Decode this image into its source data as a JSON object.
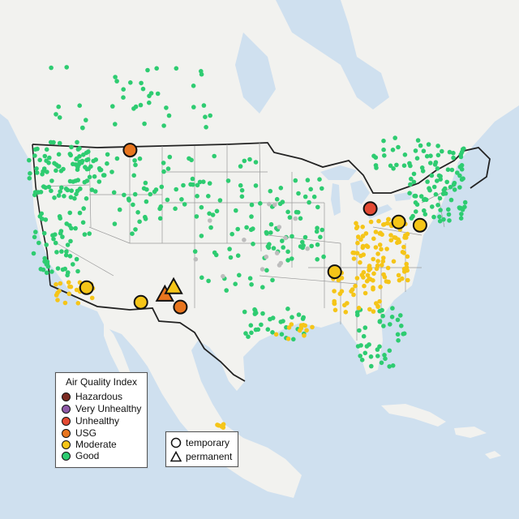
{
  "colors": {
    "water": "#cfe0ef",
    "land": "#f2f2ef",
    "lakes": "#cfe0ef",
    "state_border": "#9a9a9a",
    "country_border": "#222222",
    "Hazardous": "#7b2b22",
    "Very Unhealthy": "#8f5aa8",
    "Unhealthy": "#e34a33",
    "USG": "#e8751e",
    "Moderate": "#f5c518",
    "Good": "#2ecc71",
    "no_data": "#bdbdbd"
  },
  "legend": {
    "title": "Air Quality Index",
    "categories": [
      {
        "label": "Hazardous",
        "color": "#7b2b22"
      },
      {
        "label": "Very Unhealthy",
        "color": "#8f5aa8"
      },
      {
        "label": "Unhealthy",
        "color": "#e34a33"
      },
      {
        "label": "USG",
        "color": "#e8751e"
      },
      {
        "label": "Moderate",
        "color": "#f5c518"
      },
      {
        "label": "Good",
        "color": "#2ecc71"
      }
    ]
  },
  "type_legend": {
    "items": [
      {
        "label": "temporary",
        "shape": "circle-icon"
      },
      {
        "label": "permanent",
        "shape": "triangle-icon"
      }
    ]
  },
  "markers": [
    {
      "category": "USG",
      "shape": "circle",
      "lon": -116.7,
      "lat": 47.9
    },
    {
      "category": "Unhealthy",
      "shape": "circle",
      "lon": -84.3,
      "lat": 41.9
    },
    {
      "category": "Moderate",
      "shape": "circle",
      "lon": -81.0,
      "lat": 40.7
    },
    {
      "category": "Moderate",
      "shape": "circle",
      "lon": -78.4,
      "lat": 40.5
    },
    {
      "category": "Moderate",
      "shape": "circle",
      "lon": -89.5,
      "lat": 35.6
    },
    {
      "category": "Moderate",
      "shape": "circle",
      "lon": -118.0,
      "lat": 34.5
    },
    {
      "category": "Moderate",
      "shape": "circle",
      "lon": -111.5,
      "lat": 32.8
    },
    {
      "category": "USG",
      "shape": "triangle",
      "lon": -108.9,
      "lat": 33.5
    },
    {
      "category": "Moderate",
      "shape": "triangle",
      "lon": -108.0,
      "lat": 34.2
    },
    {
      "category": "USG",
      "shape": "circle",
      "lon": -107.0,
      "lat": 32.2
    }
  ]
}
